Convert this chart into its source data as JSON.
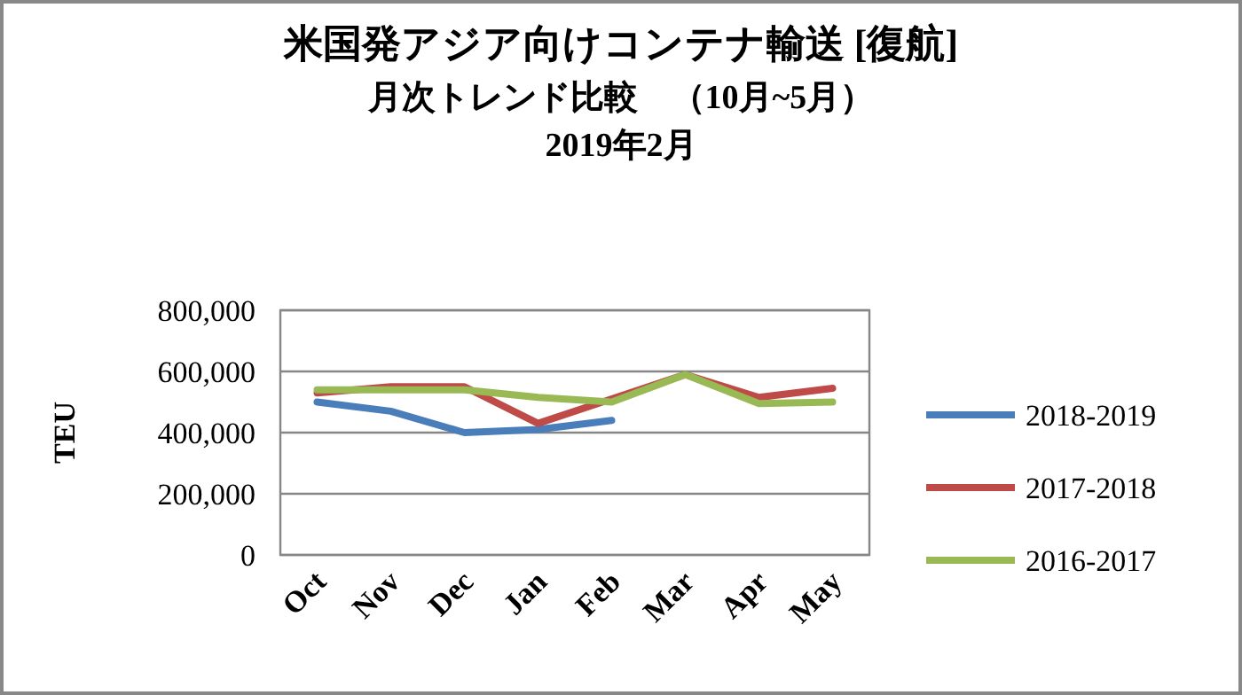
{
  "chart_data": {
    "type": "line",
    "title": "米国発アジア向けコンテナ輸送 [復航]",
    "subtitle": "月次トレンド比較　（10月~5月）\n2019年2月",
    "ylabel": "TEU",
    "categories": [
      "Oct",
      "Nov",
      "Dec",
      "Jan",
      "Feb",
      "Mar",
      "Apr",
      "May"
    ],
    "series": [
      {
        "name": "2018-2019",
        "color": "#4a7ebb",
        "values": [
          500000,
          470000,
          400000,
          410000,
          440000,
          null,
          null,
          null
        ]
      },
      {
        "name": "2017-2018",
        "color": "#be4b48",
        "values": [
          530000,
          550000,
          550000,
          430000,
          510000,
          590000,
          515000,
          545000
        ]
      },
      {
        "name": "2016-2017",
        "color": "#98b954",
        "values": [
          540000,
          540000,
          540000,
          515000,
          500000,
          590000,
          495000,
          500000
        ]
      }
    ],
    "ylim": [
      0,
      800000
    ],
    "yticks": [
      {
        "value": 0,
        "label": "0"
      },
      {
        "value": 200000,
        "label": "200,000"
      },
      {
        "value": 400000,
        "label": "400,000"
      },
      {
        "value": 600000,
        "label": "600,000"
      },
      {
        "value": 800000,
        "label": "800,000"
      }
    ],
    "grid": "y",
    "legend": "right",
    "marker": "none",
    "line_style": "solid"
  }
}
